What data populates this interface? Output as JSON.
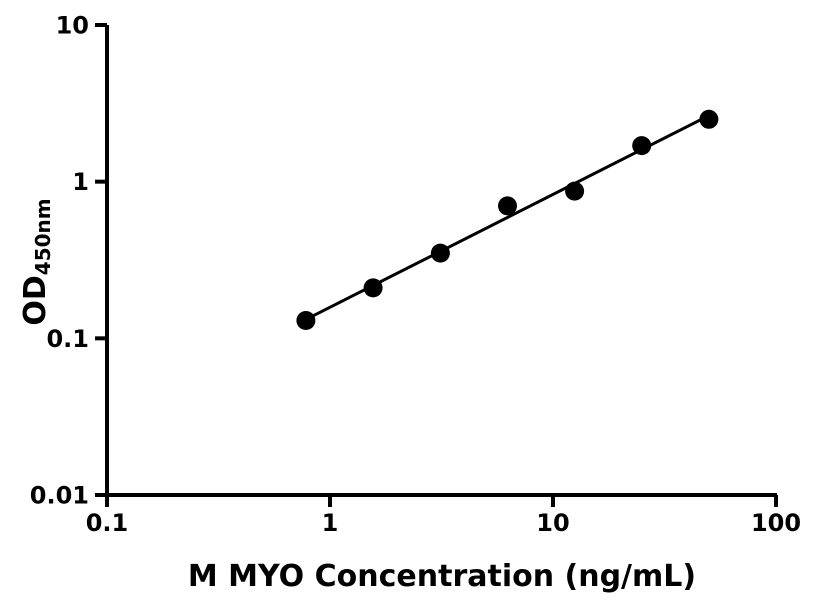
{
  "chart_data": {
    "type": "scatter",
    "title": "",
    "xlabel": "M MYO Concentration (ng/mL)",
    "ylabel_main": "OD",
    "ylabel_sub": "450nm",
    "x_scale": "log",
    "y_scale": "log",
    "xlim": [
      0.1,
      100
    ],
    "ylim": [
      0.01,
      10
    ],
    "x_ticks": [
      0.1,
      1,
      10,
      100
    ],
    "x_tick_labels": [
      "0.1",
      "1",
      "10",
      "100"
    ],
    "y_ticks": [
      0.01,
      0.1,
      1,
      10
    ],
    "y_tick_labels": [
      "0.01",
      "0.1",
      "1",
      "10"
    ],
    "grid": false,
    "legend": null,
    "series": [
      {
        "name": "standard-curve-points",
        "x": [
          0.78,
          1.56,
          3.125,
          6.25,
          12.5,
          25,
          50
        ],
        "y": [
          0.13,
          0.21,
          0.35,
          0.7,
          0.87,
          1.7,
          2.5
        ]
      }
    ],
    "fit_line": {
      "shape": "straight-in-loglog",
      "x": [
        0.78,
        50
      ],
      "y": [
        0.132,
        2.64
      ]
    },
    "marker": {
      "shape": "circle",
      "radius_px": 9.5,
      "color": "#000000"
    },
    "line_color": "#000000",
    "axis_color": "#000000",
    "background": "#ffffff"
  }
}
